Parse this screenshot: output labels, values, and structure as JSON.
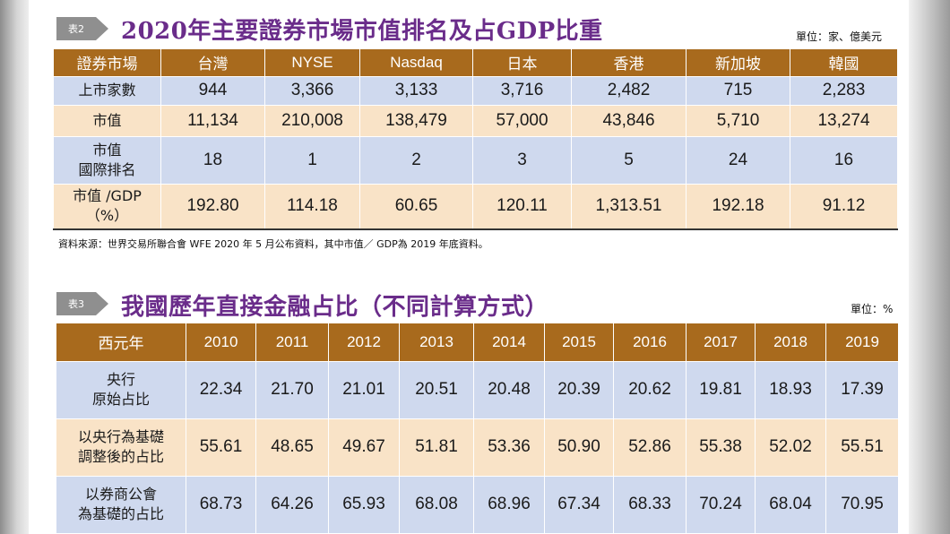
{
  "table1": {
    "tag": "表2",
    "title": "2020年主要證券市場市值排名及占GDP比重",
    "unit": "單位：家、億美元",
    "headers": [
      "證券市場",
      "台灣",
      "NYSE",
      "Nasdaq",
      "日本",
      "香港",
      "新加坡",
      "韓國"
    ],
    "rows": [
      {
        "label": "上市家數",
        "values": [
          "944",
          "3,366",
          "3,133",
          "3,716",
          "2,482",
          "715",
          "2,283"
        ]
      },
      {
        "label": "市值",
        "values": [
          "11,134",
          "210,008",
          "138,479",
          "57,000",
          "43,846",
          "5,710",
          "13,274"
        ]
      },
      {
        "label": "市值\n國際排名",
        "values": [
          "18",
          "1",
          "2",
          "3",
          "5",
          "24",
          "16"
        ]
      },
      {
        "label": "市值 /GDP\n（%）",
        "values": [
          "192.80",
          "114.18",
          "60.65",
          "120.11",
          "1,313.51",
          "192.18",
          "91.12"
        ]
      }
    ],
    "source": "資料來源：世界交易所聯合會 WFE 2020 年 5 月公布資料，其中市值／ GDP為 2019 年底資料。"
  },
  "table2": {
    "tag": "表3",
    "title": "我國歷年直接金融占比（不同計算方式）",
    "unit": "單位：%",
    "headers": [
      "西元年",
      "2010",
      "2011",
      "2012",
      "2013",
      "2014",
      "2015",
      "2016",
      "2017",
      "2018",
      "2019"
    ],
    "rows": [
      {
        "label": "央行\n原始占比",
        "values": [
          "22.34",
          "21.70",
          "21.01",
          "20.51",
          "20.48",
          "20.39",
          "20.62",
          "19.81",
          "18.93",
          "17.39"
        ]
      },
      {
        "label": "以央行為基礎\n調整後的占比",
        "values": [
          "55.61",
          "48.65",
          "49.67",
          "51.81",
          "53.36",
          "50.90",
          "52.86",
          "55.38",
          "52.02",
          "55.51"
        ]
      },
      {
        "label": "以券商公會\n為基礎的占比",
        "values": [
          "68.73",
          "64.26",
          "65.93",
          "68.08",
          "68.96",
          "67.34",
          "68.33",
          "70.24",
          "68.04",
          "70.95"
        ]
      }
    ]
  }
}
